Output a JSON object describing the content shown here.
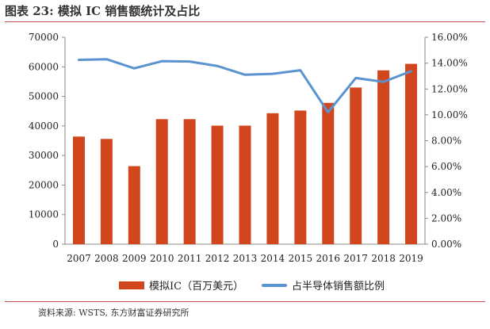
{
  "title": "图表 23: 模拟 IC 销售额统计及占比",
  "source": "资料来源: WSTS, 东方财富证券研究所",
  "colors": {
    "bar": "#d2461d",
    "line": "#5a93cf",
    "rule": "#c0504d"
  },
  "chart_data": {
    "type": "bar",
    "categories": [
      "2007",
      "2008",
      "2009",
      "2010",
      "2011",
      "2012",
      "2013",
      "2014",
      "2015",
      "2016",
      "2017",
      "2018",
      "2019"
    ],
    "series": [
      {
        "name": "模拟IC（百万美元）",
        "type": "bar",
        "axis": "left",
        "values": [
          36400,
          35600,
          26400,
          42300,
          42300,
          40100,
          40100,
          44300,
          45200,
          47800,
          53000,
          58800,
          61000
        ]
      },
      {
        "name": "占半导体销售额比例",
        "type": "line",
        "axis": "right",
        "values": [
          0.1425,
          0.143,
          0.136,
          0.1415,
          0.1412,
          0.1378,
          0.131,
          0.1317,
          0.1345,
          0.102,
          0.1285,
          0.1255,
          0.1338
        ]
      }
    ],
    "y_left": {
      "min": 0,
      "max": 70000,
      "ticks": [
        "0",
        "10000",
        "20000",
        "30000",
        "40000",
        "50000",
        "60000",
        "70000"
      ]
    },
    "y_right": {
      "min": 0,
      "max": 0.16,
      "ticks": [
        "0.00%",
        "2.00%",
        "4.00%",
        "6.00%",
        "8.00%",
        "10.00%",
        "12.00%",
        "14.00%",
        "16.00%"
      ]
    },
    "legend_position": "bottom",
    "grid": false
  }
}
